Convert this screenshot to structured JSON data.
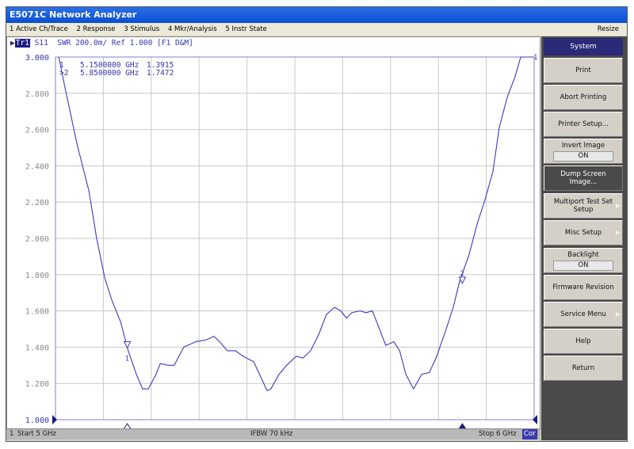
{
  "window": {
    "title": "E5071C Network Analyzer"
  },
  "menu": {
    "items": [
      "1 Active Ch/Trace",
      "2 Response",
      "3 Stimulus",
      "4 Mkr/Analysis",
      "5 Instr State"
    ],
    "resize": "Resize"
  },
  "trace_header": {
    "trace": "Tr1",
    "text": "S11  SWR 200.0m/ Ref 1.000 [F1 D&M]"
  },
  "markers": [
    {
      "id": "1",
      "freq": "5.1500000 GHz",
      "value": "1.3915",
      "prefix": " "
    },
    {
      "id": "2",
      "freq": "5.8500000 GHz",
      "value": "1.7472",
      "prefix": ">"
    }
  ],
  "status": {
    "channel": "1",
    "start": "Start 5 GHz",
    "ifbw": "IFBW 70 kHz",
    "stop": "Stop 6 GHz",
    "cor": "Cor",
    "flag": "!"
  },
  "softkeys": {
    "title": "System",
    "items": [
      {
        "label": "Print"
      },
      {
        "label": "Abort Printing"
      },
      {
        "label": "Printer Setup..."
      },
      {
        "label": "Invert Image",
        "value": "ON"
      },
      {
        "label": "Dump Screen Image...",
        "dark": true
      },
      {
        "label": "Multiport Test Set Setup",
        "arrow": true
      },
      {
        "label": "Misc Setup",
        "arrow": true
      },
      {
        "label": "Backlight",
        "value": "ON"
      },
      {
        "label": "Firmware Revision"
      },
      {
        "label": "Service Menu",
        "arrow": true
      },
      {
        "label": "Help"
      },
      {
        "label": "Return"
      }
    ]
  },
  "colors": {
    "trace": "#3b3bb8",
    "grid": "#c8c8c8",
    "active": "#1a1a80"
  },
  "chart_data": {
    "type": "line",
    "xlim": [
      5,
      6
    ],
    "ylim": [
      1,
      3
    ],
    "xunit": "GHz",
    "grid": true,
    "yticks": [
      "3.000",
      "2.800",
      "2.600",
      "2.400",
      "2.200",
      "2.000",
      "1.800",
      "1.600",
      "1.400",
      "1.200",
      "1.000"
    ],
    "marker_points": [
      {
        "label": "1",
        "x": 5.15,
        "y": 1.3915
      },
      {
        "label": "2",
        "x": 5.85,
        "y": 1.7472
      }
    ],
    "series": [
      {
        "x": [
          5.007,
          5.02,
          5.045,
          5.07,
          5.086,
          5.103,
          5.119,
          5.136,
          5.152,
          5.169,
          5.182,
          5.194,
          5.21,
          5.219,
          5.235,
          5.248,
          5.268,
          5.293,
          5.315,
          5.331,
          5.343,
          5.359,
          5.376,
          5.392,
          5.414,
          5.43,
          5.442,
          5.45,
          5.467,
          5.483,
          5.503,
          5.517,
          5.533,
          5.55,
          5.566,
          5.583,
          5.596,
          5.608,
          5.619,
          5.636,
          5.649,
          5.662,
          5.674,
          5.69,
          5.707,
          5.719,
          5.732,
          5.748,
          5.765,
          5.781,
          5.795,
          5.815,
          5.831,
          5.844,
          5.864,
          5.881,
          5.897,
          5.914,
          5.927,
          5.944,
          5.96,
          5.972,
          6.0
        ],
        "y": [
          3.0,
          2.83,
          2.52,
          2.26,
          2.0,
          1.78,
          1.65,
          1.54,
          1.38,
          1.25,
          1.17,
          1.17,
          1.25,
          1.31,
          1.3,
          1.3,
          1.4,
          1.43,
          1.44,
          1.46,
          1.43,
          1.38,
          1.38,
          1.35,
          1.32,
          1.23,
          1.16,
          1.17,
          1.25,
          1.3,
          1.35,
          1.34,
          1.38,
          1.47,
          1.58,
          1.62,
          1.6,
          1.56,
          1.59,
          1.6,
          1.59,
          1.6,
          1.52,
          1.41,
          1.43,
          1.38,
          1.25,
          1.17,
          1.25,
          1.26,
          1.34,
          1.49,
          1.62,
          1.76,
          1.91,
          2.08,
          2.21,
          2.37,
          2.61,
          2.78,
          2.89,
          3.0,
          3.0
        ]
      }
    ]
  }
}
